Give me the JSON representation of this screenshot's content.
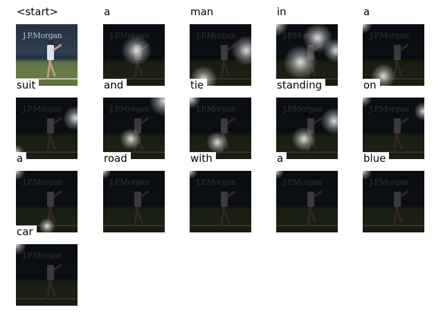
{
  "grid": {
    "words": [
      "<start>",
      "a",
      "man",
      "in",
      "a",
      "suit",
      "and",
      "tie",
      "standing",
      "on",
      "a",
      "road",
      "with",
      "a",
      "blue",
      "car"
    ]
  },
  "photo": {
    "wall_text": "J.P.Morgan"
  }
}
